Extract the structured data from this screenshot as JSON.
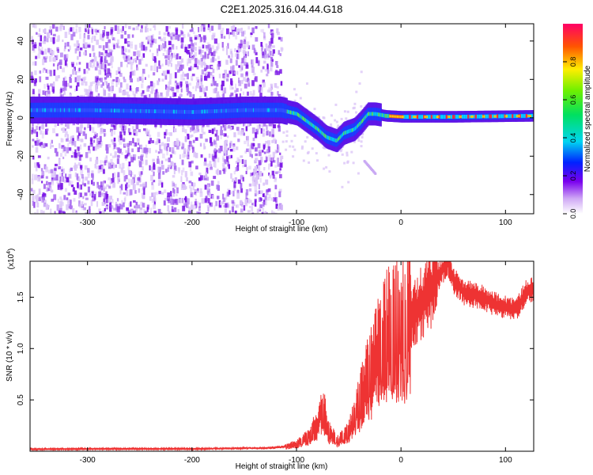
{
  "title": "C2E1.2025.316.04.44.G18",
  "chart_data": [
    {
      "type": "heatmap",
      "name": "spectrogram",
      "xlabel": "Height of straight line (km)",
      "ylabel": "Frequency (Hz)",
      "xlim": [
        -355,
        127
      ],
      "ylim": [
        -50,
        49
      ],
      "xticks": [
        -300,
        -200,
        -100,
        0,
        100
      ],
      "yticks": [
        -40,
        -20,
        0,
        20,
        40
      ],
      "noise_region_x": [
        -355,
        -115
      ],
      "ridge": [
        {
          "x": -355,
          "y": 4
        },
        {
          "x": -300,
          "y": 4
        },
        {
          "x": -250,
          "y": 3.5
        },
        {
          "x": -200,
          "y": 3
        },
        {
          "x": -150,
          "y": 4
        },
        {
          "x": -115,
          "y": 4
        },
        {
          "x": -100,
          "y": 2
        },
        {
          "x": -90,
          "y": -2
        },
        {
          "x": -80,
          "y": -6
        },
        {
          "x": -72,
          "y": -10
        },
        {
          "x": -62,
          "y": -12
        },
        {
          "x": -55,
          "y": -8
        },
        {
          "x": -45,
          "y": -6
        },
        {
          "x": -38,
          "y": -2
        },
        {
          "x": -32,
          "y": 2
        },
        {
          "x": -25,
          "y": 2
        },
        {
          "x": -15,
          "y": 1
        },
        {
          "x": 0,
          "y": 0.5
        },
        {
          "x": 50,
          "y": 0.5
        },
        {
          "x": 127,
          "y": 1
        }
      ],
      "colorbar": {
        "label": "Normalized spectral amplitude",
        "ticks": [
          "0.0",
          "0.2",
          "0.4",
          "0.6",
          "0.8"
        ],
        "range": [
          0,
          1
        ]
      }
    },
    {
      "type": "line",
      "name": "snr",
      "xlabel": "Height of straight line (km)",
      "ylabel": "SNR (10 * v/v)",
      "multiplier_label": "(x10",
      "multiplier_exp": "4",
      "xlim": [
        -355,
        127
      ],
      "ylim": [
        0,
        18500
      ],
      "xticks": [
        -300,
        -200,
        -100,
        0,
        100
      ],
      "yticks": [
        "0.5",
        "1.0",
        "1.5"
      ],
      "ytick_values": [
        5000,
        10000,
        15000
      ],
      "color": "#ee3333",
      "series": [
        {
          "name": "SNR",
          "x": [
            -355,
            -300,
            -250,
            -200,
            -150,
            -130,
            -115,
            -100,
            -90,
            -80,
            -75,
            -70,
            -65,
            -60,
            -50,
            -40,
            -30,
            -20,
            -10,
            0,
            10,
            20,
            30,
            40,
            45,
            50,
            60,
            70,
            80,
            90,
            100,
            110,
            120,
            127
          ],
          "y": [
            200,
            230,
            230,
            230,
            300,
            300,
            400,
            700,
            1300,
            2500,
            4500,
            2000,
            1400,
            1000,
            1800,
            4500,
            7500,
            10000,
            11500,
            12000,
            13000,
            14500,
            16000,
            17800,
            18500,
            16800,
            15500,
            15200,
            14900,
            14300,
            14000,
            13800,
            15500,
            15800
          ]
        }
      ]
    }
  ]
}
